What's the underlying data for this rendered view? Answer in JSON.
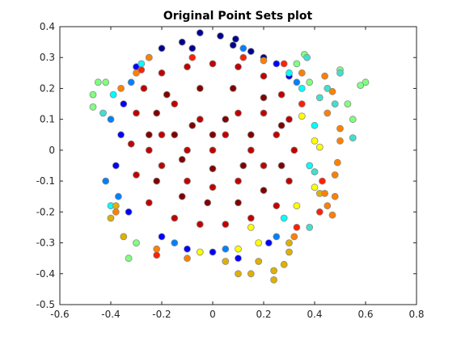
{
  "chart_data": {
    "type": "scatter",
    "title": "Original Point Sets plot",
    "xlabel": "",
    "ylabel": "",
    "xlim": [
      -0.6,
      0.8
    ],
    "ylim": [
      -0.5,
      0.4
    ],
    "xticks": [
      -0.6,
      -0.4,
      -0.2,
      0,
      0.2,
      0.4,
      0.6,
      0.8
    ],
    "yticks": [
      -0.5,
      -0.4,
      -0.3,
      -0.2,
      -0.1,
      0,
      0.1,
      0.2,
      0.3,
      0.4
    ],
    "xtick_labels": [
      "-0.6",
      "-0.4",
      "-0.2",
      "0",
      "0.2",
      "0.4",
      "0.6",
      "0.8"
    ],
    "ytick_labels": [
      "-0.5",
      "-0.4",
      "-0.3",
      "-0.2",
      "-0.1",
      "0",
      "0.1",
      "0.2",
      "0.3",
      "0.4"
    ],
    "grid": false,
    "colormap": "jet",
    "marker_edge_color": "#8a8a8a",
    "series": [
      {
        "color": "#00008f",
        "points": [
          [
            -0.05,
            0.38
          ],
          [
            0.03,
            0.37
          ],
          [
            -0.12,
            0.35
          ],
          [
            0.08,
            0.34
          ],
          [
            -0.2,
            0.33
          ],
          [
            0.15,
            0.32
          ],
          [
            0.2,
            0.3
          ],
          [
            -0.25,
            0.3
          ],
          [
            0.09,
            0.36
          ],
          [
            -0.08,
            0.33
          ]
        ]
      },
      {
        "color": "#0000ff",
        "points": [
          [
            -0.3,
            0.27
          ],
          [
            0.25,
            0.28
          ],
          [
            -0.35,
            0.15
          ],
          [
            -0.38,
            -0.05
          ],
          [
            -0.33,
            -0.2
          ],
          [
            0.0,
            -0.33
          ],
          [
            0.1,
            -0.35
          ],
          [
            -0.1,
            -0.32
          ],
          [
            0.22,
            -0.3
          ],
          [
            -0.2,
            -0.28
          ],
          [
            0.3,
            0.24
          ],
          [
            -0.36,
            0.05
          ]
        ]
      },
      {
        "color": "#0080ff",
        "points": [
          [
            -0.4,
            0.1
          ],
          [
            -0.42,
            -0.1
          ],
          [
            0.33,
            0.22
          ],
          [
            0.25,
            -0.28
          ],
          [
            -0.15,
            -0.3
          ],
          [
            0.05,
            -0.32
          ],
          [
            0.12,
            0.33
          ],
          [
            -0.32,
            0.22
          ],
          [
            -0.37,
            -0.15
          ]
        ]
      },
      {
        "color": "#00ffff",
        "points": [
          [
            -0.39,
            0.18
          ],
          [
            0.35,
            0.2
          ],
          [
            0.38,
            -0.05
          ],
          [
            -0.4,
            -0.18
          ],
          [
            0.28,
            -0.22
          ],
          [
            0.3,
            0.25
          ],
          [
            -0.28,
            0.28
          ],
          [
            0.4,
            0.08
          ]
        ]
      },
      {
        "color": "#80ff80",
        "points": [
          [
            -0.47,
            0.18
          ],
          [
            -0.45,
            0.22
          ],
          [
            -0.47,
            0.14
          ],
          [
            -0.42,
            0.22
          ],
          [
            0.6,
            0.22
          ],
          [
            0.58,
            0.21
          ],
          [
            0.55,
            0.1
          ],
          [
            0.53,
            0.15
          ],
          [
            0.38,
            0.22
          ],
          [
            0.33,
            0.28
          ],
          [
            0.36,
            0.31
          ],
          [
            -0.33,
            -0.35
          ],
          [
            -0.3,
            -0.3
          ],
          [
            0.5,
            0.26
          ]
        ]
      },
      {
        "color": "#40e0d0",
        "points": [
          [
            0.5,
            0.25
          ],
          [
            0.45,
            0.2
          ],
          [
            0.42,
            0.17
          ],
          [
            0.55,
            0.04
          ],
          [
            0.48,
            0.15
          ],
          [
            0.37,
            0.3
          ],
          [
            0.4,
            -0.07
          ],
          [
            0.38,
            -0.25
          ],
          [
            -0.43,
            0.12
          ]
        ]
      },
      {
        "color": "#ffff00",
        "points": [
          [
            0.42,
            0.01
          ],
          [
            0.4,
            0.03
          ],
          [
            0.35,
            0.11
          ],
          [
            0.1,
            -0.32
          ],
          [
            0.18,
            -0.3
          ],
          [
            -0.05,
            -0.33
          ],
          [
            0.4,
            -0.12
          ],
          [
            0.33,
            -0.18
          ],
          [
            0.15,
            -0.25
          ]
        ]
      },
      {
        "color": "#e0b000",
        "points": [
          [
            0.1,
            -0.4
          ],
          [
            0.15,
            -0.4
          ],
          [
            0.24,
            -0.42
          ],
          [
            0.24,
            -0.39
          ],
          [
            0.28,
            -0.37
          ],
          [
            0.3,
            -0.33
          ],
          [
            0.18,
            -0.36
          ],
          [
            0.05,
            -0.36
          ],
          [
            0.3,
            -0.3
          ],
          [
            -0.38,
            -0.18
          ],
          [
            -0.4,
            -0.22
          ],
          [
            -0.35,
            -0.28
          ],
          [
            0.42,
            -0.14
          ]
        ]
      },
      {
        "color": "#ff8000",
        "points": [
          [
            0.44,
            0.24
          ],
          [
            0.47,
            0.19
          ],
          [
            0.45,
            0.12
          ],
          [
            0.5,
            0.07
          ],
          [
            0.49,
            -0.04
          ],
          [
            0.48,
            -0.08
          ],
          [
            0.44,
            -0.14
          ],
          [
            0.48,
            -0.15
          ],
          [
            0.5,
            0.03
          ],
          [
            -0.3,
            0.25
          ],
          [
            -0.25,
            0.3
          ],
          [
            -0.38,
            -0.2
          ],
          [
            -0.36,
            0.2
          ],
          [
            0.2,
            0.29
          ],
          [
            0.32,
            -0.28
          ],
          [
            -0.1,
            -0.35
          ],
          [
            -0.22,
            -0.32
          ],
          [
            0.45,
            -0.18
          ],
          [
            0.47,
            -0.21
          ],
          [
            0.35,
            0.25
          ]
        ]
      },
      {
        "color": "#ff2000",
        "points": [
          [
            -0.22,
            -0.34
          ],
          [
            -0.28,
            0.26
          ],
          [
            0.28,
            0.28
          ],
          [
            0.33,
            -0.25
          ],
          [
            0.35,
            0.15
          ],
          [
            0.43,
            -0.1
          ],
          [
            0.42,
            -0.2
          ],
          [
            -0.08,
            0.3
          ],
          [
            0.12,
            0.3
          ]
        ]
      },
      {
        "color": "#c00000",
        "points": [
          [
            -0.27,
            0.2
          ],
          [
            -0.2,
            0.25
          ],
          [
            -0.1,
            0.27
          ],
          [
            0.0,
            0.28
          ],
          [
            0.1,
            0.27
          ],
          [
            0.2,
            0.24
          ],
          [
            0.27,
            0.18
          ],
          [
            0.3,
            0.1
          ],
          [
            0.32,
            0.0
          ],
          [
            0.3,
            -0.1
          ],
          [
            0.25,
            -0.18
          ],
          [
            0.15,
            -0.22
          ],
          [
            0.05,
            -0.24
          ],
          [
            -0.05,
            -0.24
          ],
          [
            -0.15,
            -0.22
          ],
          [
            -0.25,
            -0.17
          ],
          [
            -0.3,
            -0.08
          ],
          [
            -0.32,
            0.02
          ],
          [
            -0.3,
            0.12
          ],
          [
            -0.15,
            0.15
          ],
          [
            -0.05,
            0.1
          ],
          [
            0.05,
            0.05
          ],
          [
            0.15,
            0.0
          ],
          [
            0.2,
            -0.05
          ],
          [
            0.1,
            -0.1
          ],
          [
            0.0,
            -0.12
          ],
          [
            -0.1,
            -0.1
          ],
          [
            -0.2,
            -0.05
          ],
          [
            -0.2,
            0.05
          ],
          [
            -0.1,
            0.0
          ],
          [
            0.0,
            0.0
          ],
          [
            0.1,
            0.12
          ],
          [
            0.2,
            0.12
          ],
          [
            -0.25,
            0.0
          ],
          [
            0.25,
            0.05
          ]
        ]
      },
      {
        "color": "#800000",
        "points": [
          [
            -0.18,
            0.18
          ],
          [
            -0.05,
            0.2
          ],
          [
            0.08,
            0.2
          ],
          [
            0.2,
            0.17
          ],
          [
            0.27,
            0.08
          ],
          [
            0.27,
            -0.05
          ],
          [
            0.2,
            -0.13
          ],
          [
            0.1,
            -0.17
          ],
          [
            -0.02,
            -0.17
          ],
          [
            -0.12,
            -0.15
          ],
          [
            -0.22,
            -0.1
          ],
          [
            -0.25,
            0.05
          ],
          [
            -0.22,
            0.12
          ],
          [
            -0.08,
            0.08
          ],
          [
            0.05,
            0.1
          ],
          [
            0.15,
            0.05
          ],
          [
            0.12,
            -0.05
          ],
          [
            0.0,
            -0.06
          ],
          [
            -0.12,
            -0.03
          ],
          [
            -0.15,
            0.05
          ],
          [
            0.0,
            0.05
          ]
        ]
      }
    ]
  }
}
